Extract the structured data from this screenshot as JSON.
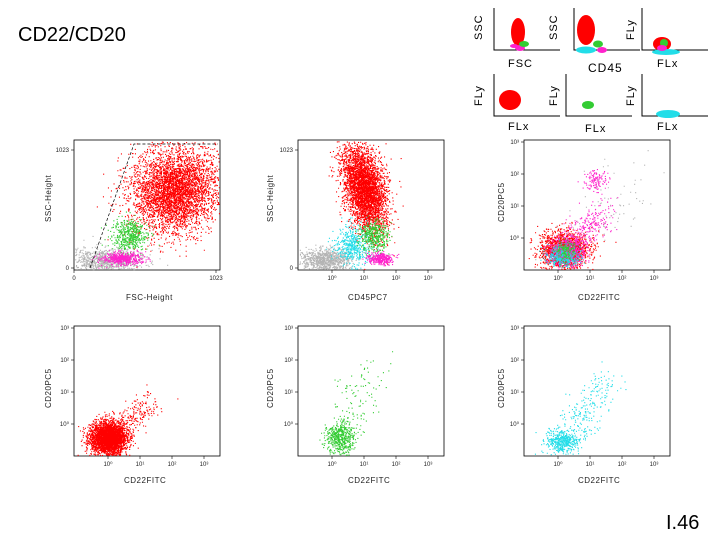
{
  "title": "CD22/CD20",
  "slide_number": "I.46",
  "thumbnails": [
    {
      "ylabel": "SSC",
      "xlabel": "FSC"
    },
    {
      "ylabel": "SSC",
      "xlabel": "CD45"
    },
    {
      "ylabel": "FLy",
      "xlabel": "FLx"
    },
    {
      "ylabel": "FLy",
      "xlabel": "FLx"
    },
    {
      "ylabel": "FLy",
      "xlabel": "FLx"
    },
    {
      "ylabel": "FLy",
      "xlabel": "FLx"
    }
  ],
  "colors": {
    "red": "#ff0000",
    "green": "#33cc33",
    "magenta": "#ff22cc",
    "cyan": "#22dde8",
    "gray": "#b4b4b4"
  },
  "chart_data": [
    {
      "type": "scatter",
      "xlabel": "FSC-Height",
      "ylabel": "SSC-Height",
      "xticks": [
        "0",
        "1023"
      ],
      "yticks": [
        "0",
        "1023"
      ],
      "xlim": [
        0,
        1023
      ],
      "ylim": [
        0,
        1023
      ]
    },
    {
      "type": "scatter",
      "xlabel": "CD45PC7",
      "ylabel": "SSC-Height",
      "xticks": [
        "10⁰",
        "10¹",
        "10²",
        "10³"
      ],
      "yticks": [
        "0",
        "1023"
      ],
      "ylim": [
        0,
        1023
      ]
    },
    {
      "type": "scatter",
      "xlabel": "CD22FITC",
      "ylabel": "CD20PC5",
      "xticks": [
        "10⁰",
        "10¹",
        "10²",
        "10³"
      ],
      "yticks": [
        "10⁰",
        "10¹",
        "10²",
        "10³"
      ]
    },
    {
      "type": "scatter",
      "xlabel": "CD22FITC",
      "ylabel": "CD20PC5",
      "xticks": [
        "10⁰",
        "10¹",
        "10²",
        "10³"
      ],
      "yticks": [
        "10⁰",
        "10¹",
        "10²",
        "10³"
      ]
    },
    {
      "type": "scatter",
      "xlabel": "CD22FITC",
      "ylabel": "CD20PC5",
      "xticks": [
        "10⁰",
        "10¹",
        "10²",
        "10³"
      ],
      "yticks": [
        "10⁰",
        "10¹",
        "10²",
        "10³"
      ]
    },
    {
      "type": "scatter",
      "xlabel": "CD22FITC",
      "ylabel": "CD20PC5",
      "xticks": [
        "10⁰",
        "10¹",
        "10²",
        "10³"
      ],
      "yticks": [
        "10⁰",
        "10¹",
        "10²",
        "10³"
      ]
    }
  ]
}
